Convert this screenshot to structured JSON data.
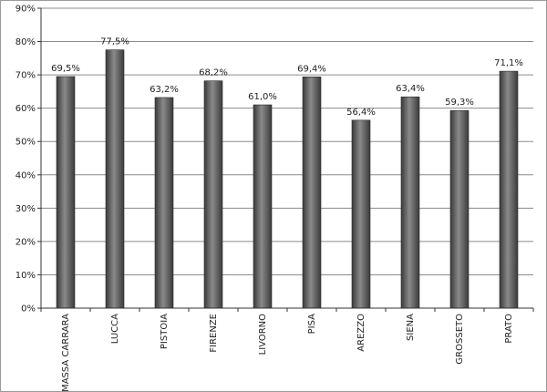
{
  "chart_data": {
    "type": "bar",
    "categories": [
      "MASSA CARRARA",
      "LUCCA",
      "PISTOIA",
      "FIRENZE",
      "LIVORNO",
      "PISA",
      "AREZZO",
      "SIENA",
      "GROSSETO",
      "PRATO"
    ],
    "values": [
      69.5,
      77.5,
      63.2,
      68.2,
      61.0,
      69.4,
      56.4,
      63.4,
      59.3,
      71.1
    ],
    "data_labels": [
      "69,5%",
      "77,5%",
      "63,2%",
      "68,2%",
      "61,0%",
      "69,4%",
      "56,4%",
      "63,4%",
      "59,3%",
      "71,1%"
    ],
    "yticks": [
      0,
      10,
      20,
      30,
      40,
      50,
      60,
      70,
      80,
      90
    ],
    "ytick_labels": [
      "0%",
      "10%",
      "20%",
      "30%",
      "40%",
      "50%",
      "60%",
      "70%",
      "80%",
      "90%"
    ],
    "ylim": [
      0,
      90
    ],
    "grid": true,
    "legend": "none",
    "title": "",
    "xlabel": "",
    "ylabel": "",
    "colors": {
      "bar_dark": "#3a3a3a",
      "bar_mid": "#6e6e6e",
      "bar_light": "#8a8a8a",
      "grid": "#8c8c8c",
      "axis": "#333333"
    }
  }
}
